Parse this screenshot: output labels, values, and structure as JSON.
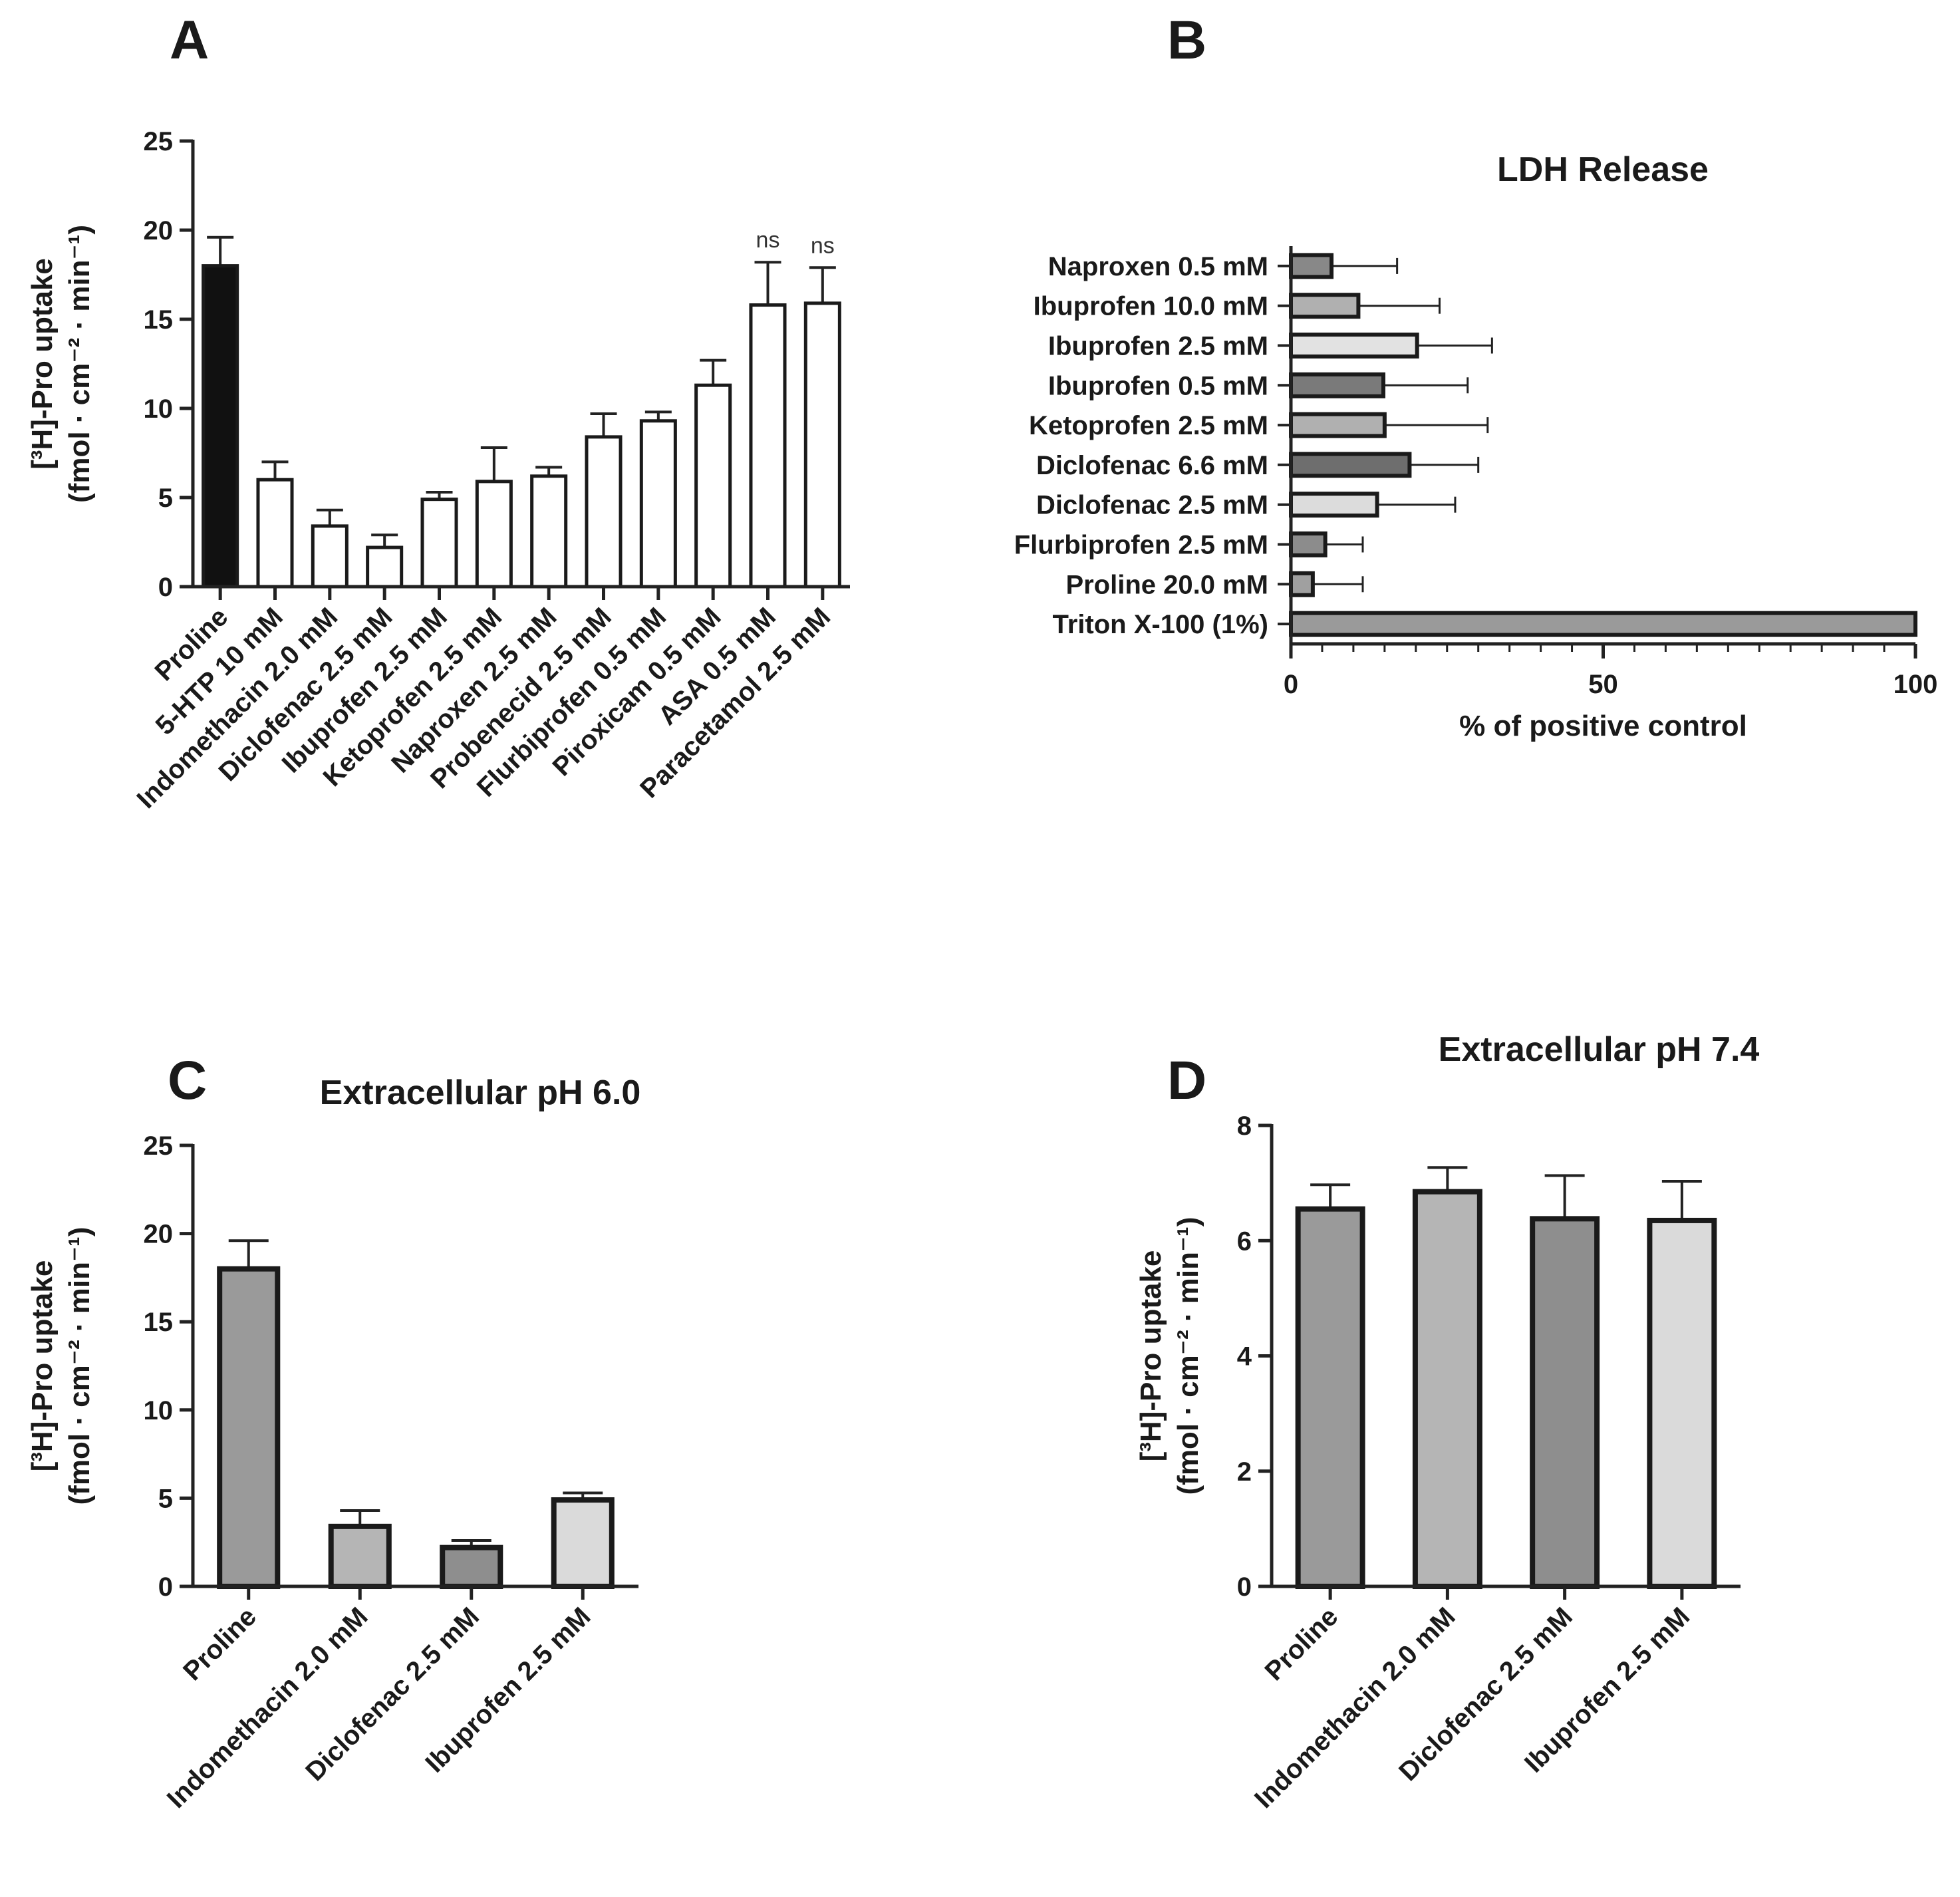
{
  "chart_data": [
    {
      "panel": "A",
      "type": "bar",
      "title": "",
      "ylabel_line1": "[³H]-Pro uptake",
      "ylabel_line2": "(fmol · cm⁻² · min⁻¹)",
      "ylim": [
        0,
        25
      ],
      "yticks": [
        "0",
        "5",
        "10",
        "15",
        "20",
        "25"
      ],
      "categories": [
        "Proline",
        "5-HTP 10 mM",
        "Indomethacin 2.0 mM",
        "Diclofenac 2.5 mM",
        "Ibuprofen 2.5 mM",
        "Ketoprofen 2.5 mM",
        "Naproxen 2.5 mM",
        "Probenecid 2.5 mM",
        "Flurbiprofen 0.5 mM",
        "Piroxicam 0.5 mM",
        "ASA 0.5 mM",
        "Paracetamol 2.5 mM"
      ],
      "values": [
        18.0,
        6.0,
        3.4,
        2.2,
        4.9,
        5.9,
        6.2,
        8.4,
        9.3,
        11.3,
        15.8,
        15.9
      ],
      "errors": [
        1.6,
        1.0,
        0.9,
        0.7,
        0.4,
        1.9,
        0.5,
        1.3,
        0.5,
        1.4,
        2.4,
        2.0
      ],
      "colors": [
        "#111111",
        "#ffffff",
        "#ffffff",
        "#ffffff",
        "#ffffff",
        "#ffffff",
        "#ffffff",
        "#ffffff",
        "#ffffff",
        "#ffffff",
        "#ffffff",
        "#ffffff"
      ],
      "annotations": [
        "",
        "",
        "",
        "",
        "",
        "",
        "",
        "",
        "",
        "",
        "ns",
        "ns"
      ]
    },
    {
      "panel": "B",
      "type": "hbar",
      "title": "LDH Release",
      "xlabel": "% of positive control",
      "xlim": [
        0,
        100
      ],
      "xticks": [
        "0",
        "50",
        "100"
      ],
      "categories": [
        "Naproxen 0.5 mM",
        "Ibuprofen 10.0 mM",
        "Ibuprofen 2.5 mM",
        "Ibuprofen 0.5 mM",
        "Ketoprofen 2.5 mM",
        "Diclofenac 6.6 mM",
        "Diclofenac 2.5 mM",
        "Flurbiprofen 2.5 mM",
        "Proline 20.0 mM",
        "Triton X-100 (1%)"
      ],
      "values": [
        6.5,
        10.8,
        20.2,
        14.8,
        15.0,
        19.0,
        13.8,
        5.5,
        3.5,
        100
      ],
      "errors": [
        10.5,
        13.0,
        12.0,
        13.5,
        16.5,
        11.0,
        12.5,
        6.0,
        8.0,
        0
      ],
      "colors": [
        "#888888",
        "#b0b0b0",
        "#e2e2e2",
        "#7a7a7a",
        "#b0b0b0",
        "#6e6e6e",
        "#dcdcdc",
        "#8c8c8c",
        "#a0a0a0",
        "#9a9a9a"
      ]
    },
    {
      "panel": "C",
      "type": "bar",
      "title": "Extracellular pH 6.0",
      "ylabel_line1": "[³H]-Pro uptake",
      "ylabel_line2": "(fmol · cm⁻² · min⁻¹)",
      "ylim": [
        0,
        25
      ],
      "yticks": [
        "0",
        "5",
        "10",
        "15",
        "20",
        "25"
      ],
      "categories": [
        "Proline",
        "Indomethacin 2.0 mM",
        "Diclofenac 2.5 mM",
        "Ibuprofen 2.5 mM"
      ],
      "values": [
        18.0,
        3.4,
        2.2,
        4.9
      ],
      "errors": [
        1.6,
        0.9,
        0.4,
        0.4
      ],
      "colors": [
        "#9a9a9a",
        "#b5b5b5",
        "#8e8e8e",
        "#dadada"
      ]
    },
    {
      "panel": "D",
      "type": "bar",
      "title": "Extracellular pH 7.4",
      "ylabel_line1": "[³H]-Pro uptake",
      "ylabel_line2": "(fmol · cm⁻² · min⁻¹)",
      "ylim": [
        0,
        8
      ],
      "yticks": [
        "0",
        "2",
        "4",
        "6",
        "8"
      ],
      "categories": [
        "Proline",
        "Indomethacin 2.0 mM",
        "Diclofenac 2.5 mM",
        "Ibuprofen 2.5 mM"
      ],
      "values": [
        6.55,
        6.85,
        6.38,
        6.35
      ],
      "errors": [
        0.42,
        0.42,
        0.75,
        0.68
      ],
      "colors": [
        "#9a9a9a",
        "#b5b5b5",
        "#8e8e8e",
        "#dadada"
      ]
    }
  ]
}
